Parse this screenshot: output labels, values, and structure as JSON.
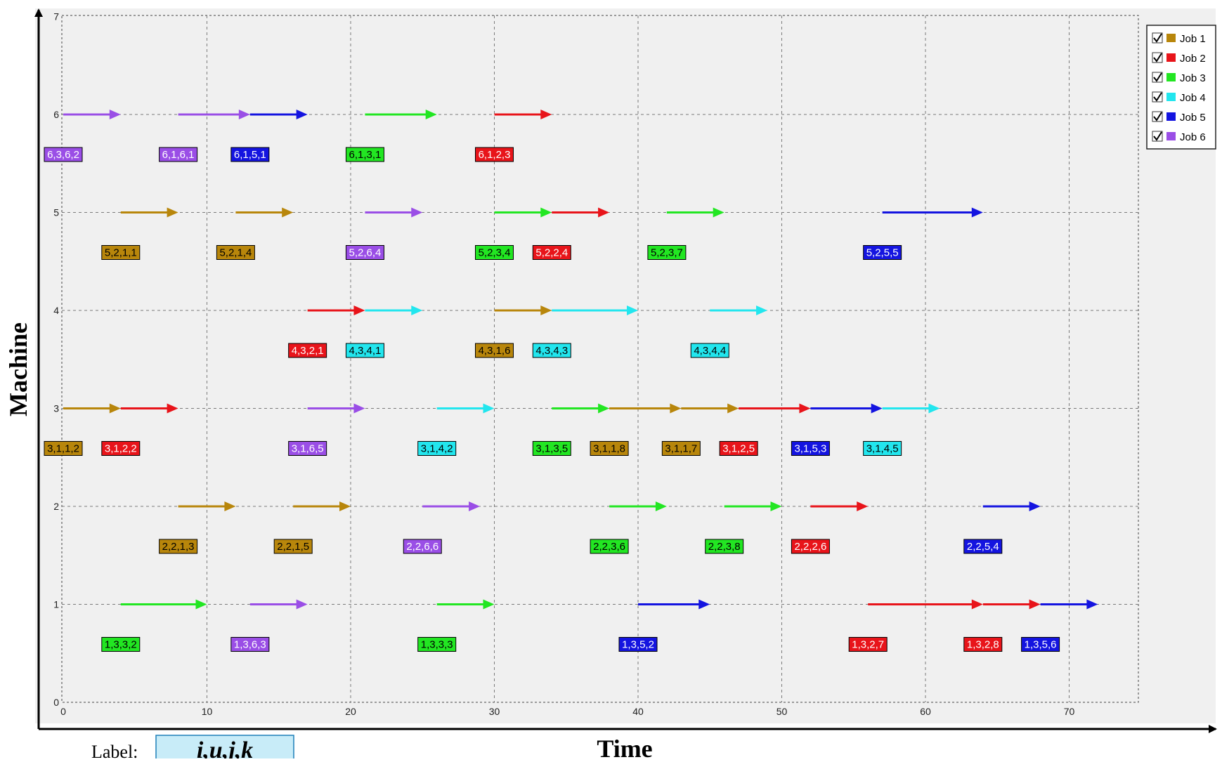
{
  "chart_data": {
    "type": "gantt",
    "xlabel": "Time",
    "ylabel": "Machine",
    "xlim": [
      0,
      75
    ],
    "ylim": [
      0,
      7
    ],
    "x_ticks": [
      0,
      10,
      20,
      30,
      40,
      50,
      60,
      70
    ],
    "y_ticks": [
      0,
      1,
      2,
      3,
      4,
      5,
      6,
      7
    ],
    "grid": true,
    "legend_position": "top-right",
    "legend": [
      {
        "name": "Job 1",
        "color": "#b8860b",
        "checked": true
      },
      {
        "name": "Job 2",
        "color": "#e8141a",
        "checked": true
      },
      {
        "name": "Job 3",
        "color": "#22e622",
        "checked": true
      },
      {
        "name": "Job 4",
        "color": "#22e6ee",
        "checked": true
      },
      {
        "name": "Job 5",
        "color": "#1414e0",
        "checked": true
      },
      {
        "name": "Job 6",
        "color": "#9a4ee6",
        "checked": true
      }
    ],
    "operations": [
      {
        "machine": 6,
        "job": 6,
        "start": 0,
        "end": 4,
        "label": "6,3,6,2"
      },
      {
        "machine": 6,
        "job": 6,
        "start": 8,
        "end": 13,
        "label": "6,1,6,1"
      },
      {
        "machine": 6,
        "job": 5,
        "start": 13,
        "end": 17,
        "label": "6,1,5,1"
      },
      {
        "machine": 6,
        "job": 3,
        "start": 21,
        "end": 26,
        "label": "6,1,3,1"
      },
      {
        "machine": 6,
        "job": 2,
        "start": 30,
        "end": 34,
        "label": "6,1,2,3"
      },
      {
        "machine": 5,
        "job": 1,
        "start": 4,
        "end": 8,
        "label": "5,2,1,1"
      },
      {
        "machine": 5,
        "job": 1,
        "start": 12,
        "end": 16,
        "label": "5,2,1,4"
      },
      {
        "machine": 5,
        "job": 6,
        "start": 21,
        "end": 25,
        "label": "5,2,6,4"
      },
      {
        "machine": 5,
        "job": 3,
        "start": 30,
        "end": 34,
        "label": "5,2,3,4"
      },
      {
        "machine": 5,
        "job": 2,
        "start": 34,
        "end": 38,
        "label": "5,2,2,4"
      },
      {
        "machine": 5,
        "job": 3,
        "start": 42,
        "end": 46,
        "label": "5,2,3,7"
      },
      {
        "machine": 5,
        "job": 5,
        "start": 57,
        "end": 64,
        "label": "5,2,5,5"
      },
      {
        "machine": 4,
        "job": 2,
        "start": 17,
        "end": 21,
        "label": "4,3,2,1"
      },
      {
        "machine": 4,
        "job": 4,
        "start": 21,
        "end": 25,
        "label": "4,3,4,1"
      },
      {
        "machine": 4,
        "job": 1,
        "start": 30,
        "end": 34,
        "label": "4,3,1,6"
      },
      {
        "machine": 4,
        "job": 4,
        "start": 34,
        "end": 40,
        "label": "4,3,4,3"
      },
      {
        "machine": 4,
        "job": 4,
        "start": 45,
        "end": 49,
        "label": "4,3,4,4"
      },
      {
        "machine": 3,
        "job": 1,
        "start": 0,
        "end": 4,
        "label": "3,1,1,2"
      },
      {
        "machine": 3,
        "job": 2,
        "start": 4,
        "end": 8,
        "label": "3,1,2,2"
      },
      {
        "machine": 3,
        "job": 6,
        "start": 17,
        "end": 21,
        "label": "3,1,6,5"
      },
      {
        "machine": 3,
        "job": 4,
        "start": 26,
        "end": 30,
        "label": "3,1,4,2"
      },
      {
        "machine": 3,
        "job": 3,
        "start": 34,
        "end": 38,
        "label": "3,1,3,5"
      },
      {
        "machine": 3,
        "job": 1,
        "start": 38,
        "end": 43,
        "label": "3,1,1,8"
      },
      {
        "machine": 3,
        "job": 1,
        "start": 43,
        "end": 47,
        "label": "3,1,1,7"
      },
      {
        "machine": 3,
        "job": 2,
        "start": 47,
        "end": 52,
        "label": "3,1,2,5"
      },
      {
        "machine": 3,
        "job": 5,
        "start": 52,
        "end": 57,
        "label": "3,1,5,3"
      },
      {
        "machine": 3,
        "job": 4,
        "start": 57,
        "end": 61,
        "label": "3,1,4,5"
      },
      {
        "machine": 2,
        "job": 1,
        "start": 8,
        "end": 12,
        "label": "2,2,1,3"
      },
      {
        "machine": 2,
        "job": 1,
        "start": 16,
        "end": 20,
        "label": "2,2,1,5"
      },
      {
        "machine": 2,
        "job": 6,
        "start": 25,
        "end": 29,
        "label": "2,2,6,6"
      },
      {
        "machine": 2,
        "job": 3,
        "start": 38,
        "end": 42,
        "label": "2,2,3,6"
      },
      {
        "machine": 2,
        "job": 3,
        "start": 46,
        "end": 50,
        "label": "2,2,3,8"
      },
      {
        "machine": 2,
        "job": 2,
        "start": 52,
        "end": 56,
        "label": "2,2,2,6"
      },
      {
        "machine": 2,
        "job": 5,
        "start": 64,
        "end": 68,
        "label": "2,2,5,4"
      },
      {
        "machine": 1,
        "job": 3,
        "start": 4,
        "end": 10,
        "label": "1,3,3,2"
      },
      {
        "machine": 1,
        "job": 6,
        "start": 13,
        "end": 17,
        "label": "1,3,6,3"
      },
      {
        "machine": 1,
        "job": 3,
        "start": 26,
        "end": 30,
        "label": "1,3,3,3"
      },
      {
        "machine": 1,
        "job": 5,
        "start": 40,
        "end": 45,
        "label": "1,3,5,2"
      },
      {
        "machine": 1,
        "job": 2,
        "start": 56,
        "end": 64,
        "label": "1,3,2,7"
      },
      {
        "machine": 1,
        "job": 2,
        "start": 64,
        "end": 68,
        "label": "1,3,2,8"
      },
      {
        "machine": 1,
        "job": 5,
        "start": 68,
        "end": 72,
        "label": "1,3,5,6"
      }
    ]
  },
  "label_key": {
    "caption": "Label:",
    "sample": "i,u,j,k"
  }
}
